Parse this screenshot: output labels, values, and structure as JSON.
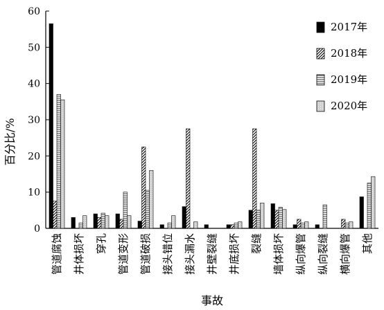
{
  "chart_data": {
    "type": "bar",
    "xlabel": "事故",
    "ylabel": "百分比/%",
    "ylim": [
      0,
      60
    ],
    "yticks": [
      0,
      10,
      20,
      30,
      40,
      50,
      60
    ],
    "grid": false,
    "legend_position": "top-right",
    "categories": [
      "管道腐蚀",
      "井体损坏",
      "穿孔",
      "管道变形",
      "管道破损",
      "接头错位",
      "接头漏水",
      "井壁裂缝",
      "井底损坏",
      "裂缝",
      "墙体损坏",
      "纵向爆管",
      "纵向裂缝",
      "横向爆管",
      "其他"
    ],
    "series": [
      {
        "name": "2017年",
        "pattern": "solid",
        "color": "#000000",
        "values": [
          56.5,
          3.0,
          4.0,
          4.0,
          2.0,
          1.0,
          6.0,
          1.0,
          1.0,
          5.0,
          6.8,
          1.0,
          1.0,
          0,
          8.7
        ]
      },
      {
        "name": "2018年",
        "pattern": "diagonal",
        "color": "#000000",
        "values": [
          7.5,
          0,
          3.0,
          2.5,
          22.5,
          0,
          27.5,
          0,
          1.0,
          27.5,
          5.0,
          2.5,
          0,
          2.5,
          0
        ]
      },
      {
        "name": "2019年",
        "pattern": "horizontal",
        "color": "#888888",
        "values": [
          37.0,
          1.5,
          4.2,
          10.0,
          10.5,
          1.5,
          0,
          0,
          1.5,
          5.0,
          5.8,
          1.5,
          6.5,
          1.5,
          12.5
        ]
      },
      {
        "name": "2020年",
        "pattern": "light",
        "color": "#c8c8c8",
        "values": [
          35.5,
          3.5,
          3.5,
          3.5,
          16.0,
          3.5,
          1.8,
          0,
          1.8,
          7.0,
          5.2,
          1.8,
          0,
          1.8,
          14.3
        ]
      }
    ]
  }
}
